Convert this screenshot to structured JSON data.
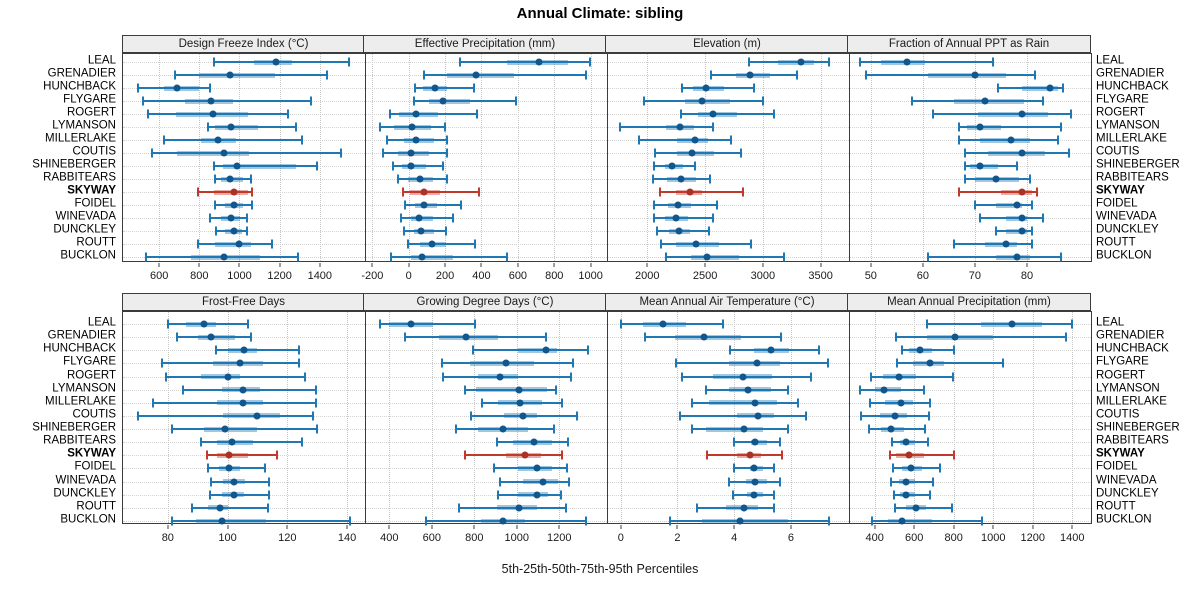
{
  "title": "Annual Climate: sibling",
  "xlabel": "5th-25th-50th-75th-95th Percentiles",
  "highlight_station": "SKYWAY",
  "colors": {
    "blue_line": "#1f77b4",
    "blue_band": "rgba(31,119,180,0.42)",
    "blue_dot": "#11568c",
    "red_line": "#c0392b",
    "red_band": "rgba(192,57,43,0.42)",
    "red_dot": "#a93226",
    "strip_bg": "#ededed",
    "border": "#3c3c3c",
    "grid": "#c6c6c6"
  },
  "chart_data": {
    "type": "dotplot",
    "note": "5th-25th-50th-75th-95th percentile whisker plot per station; SKYWAY highlighted in red",
    "percentiles": [
      "5th",
      "25th",
      "50th",
      "75th",
      "95th"
    ],
    "stations_top_to_bottom": [
      "LEAL",
      "GRENADIER",
      "HUNCHBACK",
      "FLYGARE",
      "ROGERT",
      "LYMANSON",
      "MILLERLAKE",
      "COUTIS",
      "SHINEBERGER",
      "RABBITEARS",
      "SKYWAY",
      "FOIDEL",
      "WINEVADA",
      "DUNCKLEY",
      "ROUTT",
      "BUCKLON"
    ],
    "panels": [
      {
        "label": "Design Freeze Index (°C)",
        "grid_row": "top",
        "ticks": [
          600,
          800,
          1000,
          1200,
          1400
        ],
        "xlim": [
          420,
          1625
        ],
        "values": [
          [
            875,
            1070,
            1180,
            1260,
            1545
          ],
          [
            680,
            800,
            955,
            1175,
            1435
          ],
          [
            495,
            625,
            690,
            800,
            855
          ],
          [
            520,
            727,
            860,
            968,
            1355
          ],
          [
            542,
            686,
            869,
            1043,
            1242
          ],
          [
            844,
            877,
            956,
            1093,
            1283
          ],
          [
            625,
            807,
            894,
            985,
            1313
          ],
          [
            562,
            691,
            923,
            1048,
            1504
          ],
          [
            875,
            920,
            990,
            1283,
            1386
          ],
          [
            880,
            910,
            951,
            1018,
            1059
          ],
          [
            795,
            875,
            975,
            1040,
            1062
          ],
          [
            880,
            927,
            973,
            1018,
            1063
          ],
          [
            852,
            910,
            960,
            1001,
            1039
          ],
          [
            885,
            927,
            973,
            1013,
            1039
          ],
          [
            791,
            877,
            998,
            1059,
            1164
          ],
          [
            533,
            757,
            921,
            1104,
            1292
          ]
        ]
      },
      {
        "label": "Effective Precipitation (mm)",
        "grid_row": "top",
        "ticks": [
          -200,
          0,
          200,
          400,
          600,
          800,
          1000
        ],
        "xlim": [
          -235,
          1090
        ],
        "values": [
          [
            281,
            541,
            714,
            874,
            997
          ],
          [
            86,
            213,
            368,
            578,
            975
          ],
          [
            35,
            77,
            146,
            213,
            359
          ],
          [
            27,
            113,
            186,
            337,
            592
          ],
          [
            -105,
            -51,
            40,
            162,
            377
          ],
          [
            -160,
            -82,
            19,
            122,
            197
          ],
          [
            -118,
            -27,
            40,
            137,
            213
          ],
          [
            -142,
            -60,
            13,
            113,
            213
          ],
          [
            -87,
            -38,
            13,
            95,
            191
          ],
          [
            -60,
            -5,
            60,
            131,
            213
          ],
          [
            -33,
            9,
            86,
            173,
            386
          ],
          [
            -22,
            35,
            82,
            155,
            286
          ],
          [
            -45,
            13,
            58,
            131,
            246
          ],
          [
            -27,
            27,
            68,
            137,
            204
          ],
          [
            -5,
            64,
            128,
            204,
            363
          ],
          [
            -100,
            13,
            71,
            246,
            538
          ]
        ]
      },
      {
        "label": "Elevation (m)",
        "grid_row": "top",
        "ticks": [
          2000,
          2500,
          3000,
          3500
        ],
        "xlim": [
          1660,
          3745
        ],
        "values": [
          [
            2880,
            3135,
            3330,
            3440,
            3575
          ],
          [
            2550,
            2770,
            2890,
            3060,
            3295
          ],
          [
            2300,
            2395,
            2505,
            2660,
            2920
          ],
          [
            1975,
            2330,
            2475,
            2715,
            3005
          ],
          [
            2295,
            2435,
            2570,
            2780,
            3100
          ],
          [
            1765,
            2165,
            2280,
            2400,
            2570
          ],
          [
            1930,
            2255,
            2410,
            2525,
            2725
          ],
          [
            2070,
            2260,
            2390,
            2575,
            2810
          ],
          [
            2060,
            2150,
            2215,
            2310,
            2415
          ],
          [
            2050,
            2170,
            2295,
            2425,
            2540
          ],
          [
            2110,
            2245,
            2370,
            2475,
            2830
          ],
          [
            2060,
            2180,
            2265,
            2375,
            2600
          ],
          [
            2060,
            2150,
            2245,
            2350,
            2570
          ],
          [
            2080,
            2185,
            2275,
            2370,
            2530
          ],
          [
            2115,
            2245,
            2425,
            2620,
            2895
          ],
          [
            2165,
            2375,
            2515,
            2790,
            3185
          ]
        ]
      },
      {
        "label": "Fraction of Annual PPT as Rain",
        "grid_row": "top",
        "ticks": [
          50,
          60,
          70,
          80
        ],
        "xlim": [
          46,
          92.3
        ],
        "values": [
          [
            48,
            52,
            57,
            60.5,
            73.5
          ],
          [
            49,
            61,
            70,
            76,
            81.5
          ],
          [
            74.5,
            79,
            84.5,
            86,
            87
          ],
          [
            58,
            66,
            72,
            79.5,
            83
          ],
          [
            62,
            70.5,
            79,
            84,
            88.5
          ],
          [
            67,
            68.5,
            71,
            75,
            86.5
          ],
          [
            67,
            71,
            77,
            80.5,
            86
          ],
          [
            68,
            72.5,
            79,
            83.5,
            88
          ],
          [
            68,
            69,
            71,
            74.5,
            78
          ],
          [
            68,
            70,
            74,
            78.5,
            80.5
          ],
          [
            67,
            75,
            79,
            81,
            82
          ],
          [
            70,
            74,
            78,
            79,
            81
          ],
          [
            71,
            76,
            79,
            80,
            83
          ],
          [
            74,
            76,
            79,
            80,
            81
          ],
          [
            66,
            72,
            76,
            78,
            81
          ],
          [
            61,
            74,
            78,
            80.5,
            86.5
          ]
        ]
      },
      {
        "label": "Frost-Free Days",
        "grid_row": "bottom",
        "ticks": [
          80,
          100,
          120,
          140
        ],
        "xlim": [
          65,
          146
        ],
        "values": [
          [
            80,
            86,
            92,
            96,
            107
          ],
          [
            83,
            90,
            94.5,
            102.5,
            108
          ],
          [
            96,
            100,
            105.5,
            110,
            124
          ],
          [
            78,
            95,
            104,
            112,
            124
          ],
          [
            79.5,
            91,
            100,
            104,
            126
          ],
          [
            85,
            98,
            105,
            111,
            129.5
          ],
          [
            75,
            96.5,
            105,
            112,
            129.5
          ],
          [
            70,
            98.5,
            110,
            117.5,
            128.5
          ],
          [
            81.5,
            92,
            99,
            110,
            130
          ],
          [
            91,
            96.5,
            101.5,
            108.5,
            125
          ],
          [
            93,
            96.5,
            100.5,
            107,
            116.5
          ],
          [
            93.5,
            97,
            100.5,
            104,
            112.5
          ],
          [
            94.5,
            98.5,
            102,
            106,
            114
          ],
          [
            94,
            98,
            102,
            105.5,
            114
          ],
          [
            88,
            93.5,
            97.5,
            100,
            113.5
          ],
          [
            81.5,
            89.5,
            98,
            113,
            141
          ]
        ]
      },
      {
        "label": "Growing Degree Days (°C)",
        "grid_row": "bottom",
        "ticks": [
          400,
          600,
          800,
          1000,
          1200
        ],
        "xlim": [
          290,
          1425
        ],
        "values": [
          [
            355,
            400,
            500,
            605,
            805
          ],
          [
            473,
            632,
            759,
            910,
            1140
          ],
          [
            793,
            1004,
            1137,
            1190,
            1337
          ],
          [
            650,
            778,
            950,
            1082,
            1267
          ],
          [
            653,
            817,
            921,
            1004,
            1257
          ],
          [
            757,
            809,
            1012,
            1144,
            1183
          ],
          [
            837,
            911,
            1015,
            1121,
            1212
          ],
          [
            786,
            942,
            1028,
            1093,
            1285
          ],
          [
            715,
            817,
            934,
            1051,
            1176
          ],
          [
            907,
            981,
            1082,
            1168,
            1243
          ],
          [
            757,
            950,
            1040,
            1113,
            1212
          ],
          [
            895,
            1004,
            1093,
            1165,
            1238
          ],
          [
            921,
            1031,
            1124,
            1192,
            1246
          ],
          [
            911,
            1004,
            1093,
            1149,
            1207
          ],
          [
            728,
            906,
            1009,
            1093,
            1231
          ],
          [
            571,
            832,
            937,
            1040,
            1324
          ]
        ]
      },
      {
        "label": "Mean Annual Air Temperature (°C)",
        "grid_row": "bottom",
        "ticks": [
          0,
          2,
          4,
          6
        ],
        "xlim": [
          -0.45,
          8.05
        ],
        "values": [
          [
            0.0,
            0.8,
            1.5,
            2.3,
            3.6
          ],
          [
            0.85,
            1.9,
            2.95,
            4.25,
            5.65
          ],
          [
            3.85,
            4.7,
            5.3,
            5.95,
            7.0
          ],
          [
            1.95,
            3.8,
            4.8,
            5.6,
            7.3
          ],
          [
            2.15,
            3.25,
            4.3,
            5.35,
            6.7
          ],
          [
            3.0,
            3.8,
            4.5,
            5.3,
            5.9
          ],
          [
            2.5,
            3.1,
            4.75,
            5.5,
            6.25
          ],
          [
            2.1,
            4.1,
            4.85,
            5.4,
            6.55
          ],
          [
            2.5,
            3.0,
            4.35,
            5.0,
            5.9
          ],
          [
            4.0,
            4.6,
            4.75,
            5.15,
            5.6
          ],
          [
            3.05,
            4.1,
            4.55,
            4.95,
            5.7
          ],
          [
            4.0,
            4.55,
            4.7,
            5.0,
            5.4
          ],
          [
            3.8,
            4.4,
            4.75,
            5.15,
            5.6
          ],
          [
            3.95,
            4.45,
            4.7,
            5.0,
            5.4
          ],
          [
            2.7,
            3.7,
            4.35,
            4.85,
            5.4
          ],
          [
            1.75,
            2.85,
            4.2,
            5.9,
            7.35
          ]
        ]
      },
      {
        "label": "Mean Annual Precipitation (mm)",
        "grid_row": "bottom",
        "ticks": [
          400,
          600,
          800,
          1000,
          1200,
          1400
        ],
        "xlim": [
          275,
          1495
        ],
        "values": [
          [
            665,
            940,
            1095,
            1245,
            1400
          ],
          [
            510,
            665,
            805,
            1000,
            1370
          ],
          [
            540,
            573,
            631,
            691,
            799
          ],
          [
            513,
            593,
            678,
            753,
            1048
          ],
          [
            383,
            442,
            521,
            610,
            795
          ],
          [
            324,
            400,
            447,
            535,
            648
          ],
          [
            378,
            451,
            535,
            593,
            678
          ],
          [
            333,
            425,
            501,
            563,
            674
          ],
          [
            371,
            434,
            484,
            548,
            653
          ],
          [
            489,
            526,
            557,
            605,
            669
          ],
          [
            479,
            510,
            573,
            648,
            804
          ],
          [
            492,
            540,
            585,
            641,
            732
          ],
          [
            484,
            523,
            557,
            602,
            695
          ],
          [
            496,
            530,
            557,
            602,
            681
          ],
          [
            501,
            557,
            610,
            658,
            792
          ],
          [
            388,
            467,
            540,
            691,
            944
          ]
        ]
      }
    ]
  }
}
